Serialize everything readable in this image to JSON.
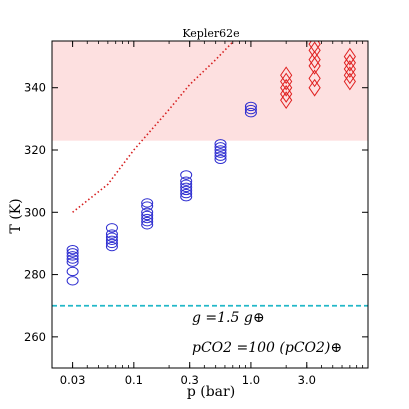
{
  "chart_data": {
    "type": "scatter",
    "title": "Kepler62e",
    "xlabel": "p (bar)",
    "ylabel": "T (K)",
    "xscale": "log",
    "xlim": [
      0.02,
      10
    ],
    "ylim": [
      250,
      355
    ],
    "xticks": [
      0.03,
      0.1,
      0.3,
      1.0,
      3.0
    ],
    "xtick_labels": [
      "0.03",
      "0.1",
      "0.3",
      "1.0",
      "3.0"
    ],
    "yticks": [
      260,
      280,
      300,
      320,
      340
    ],
    "ytick_labels": [
      "260",
      "280",
      "300",
      "320",
      "340"
    ],
    "habitable_band": {
      "y0": 323,
      "y1": 355,
      "color": "#fde0e0"
    },
    "freezing_line": {
      "y": 270,
      "color": "#22b8c8"
    },
    "dotted_curve": {
      "color": "#d62020",
      "x": [
        0.03,
        0.06,
        0.1,
        0.2,
        0.3,
        0.5,
        0.8
      ],
      "y": [
        300,
        309,
        320,
        333,
        341,
        349,
        357
      ]
    },
    "series": [
      {
        "marker": "circle",
        "color": "#2d2dd0",
        "points": [
          {
            "x": 0.03,
            "y": [
              278,
              281,
              284,
              285,
              286,
              287,
              288
            ]
          },
          {
            "x": 0.065,
            "y": [
              289,
              290,
              291,
              292,
              293,
              295
            ]
          },
          {
            "x": 0.13,
            "y": [
              296,
              297,
              298,
              299,
              300,
              302,
              303
            ]
          },
          {
            "x": 0.28,
            "y": [
              305,
              306,
              307,
              308,
              309,
              310,
              312
            ]
          },
          {
            "x": 0.55,
            "y": [
              317,
              318,
              319,
              320,
              321,
              322
            ]
          },
          {
            "x": 1.0,
            "y": [
              332,
              333,
              334
            ]
          }
        ]
      },
      {
        "marker": "diamond",
        "color": "#e02020",
        "points": [
          {
            "x": 2.0,
            "y": [
              336,
              338,
              340,
              342,
              344
            ]
          },
          {
            "x": 3.5,
            "y": [
              340,
              343,
              347,
              349,
              352,
              354
            ]
          },
          {
            "x": 7.0,
            "y": [
              342,
              344,
              346,
              348,
              350
            ]
          }
        ]
      }
    ]
  },
  "annotations": {
    "gravity": "g =1.5 g⊕",
    "co2": "pCO2 =100 (pCO2)⊕"
  }
}
